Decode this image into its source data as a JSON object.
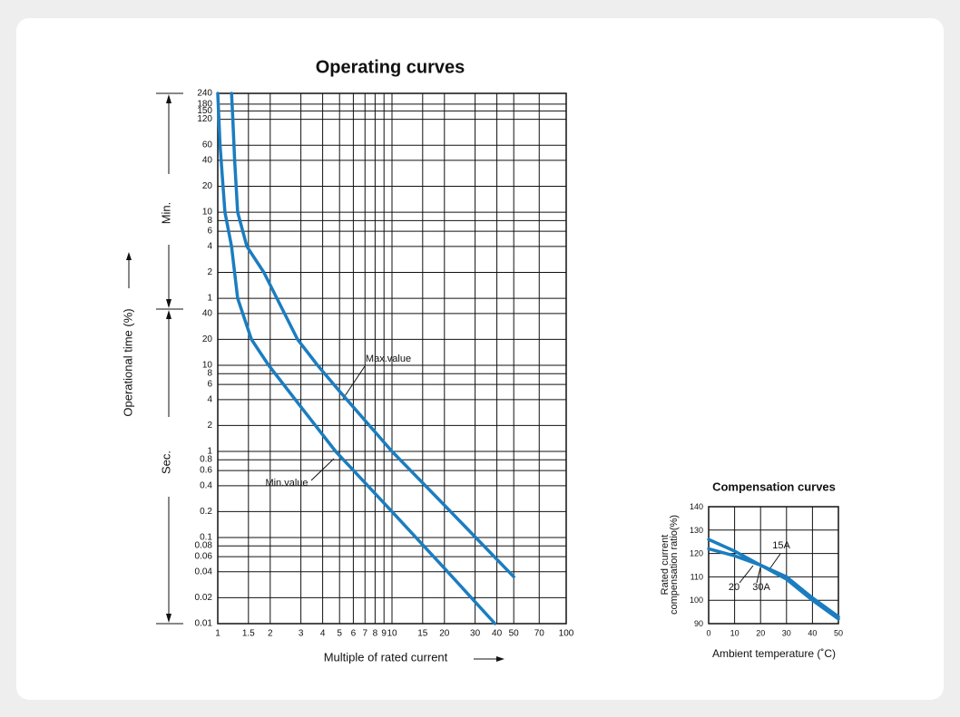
{
  "chart_data": [
    {
      "type": "line",
      "title": "Operating curves",
      "xlabel": "Multiple of rated current",
      "ylabel": "Operational time (%)",
      "xlog": true,
      "ylog": true,
      "grid": true,
      "xlim": [
        1,
        100
      ],
      "ylim": [
        0.01,
        14400
      ],
      "xticks": [
        1,
        1.5,
        2,
        3,
        4,
        5,
        6,
        7,
        8,
        9,
        10,
        15,
        20,
        30,
        40,
        50,
        70,
        100
      ],
      "yticks": [
        {
          "value": 14400,
          "label": "240"
        },
        {
          "value": 10800,
          "label": "180"
        },
        {
          "value": 9000,
          "label": "150"
        },
        {
          "value": 7200,
          "label": "120"
        },
        {
          "value": 3600,
          "label": "60"
        },
        {
          "value": 2400,
          "label": "40"
        },
        {
          "value": 1200,
          "label": "20"
        },
        {
          "value": 600,
          "label": "10"
        },
        {
          "value": 480,
          "label": "8"
        },
        {
          "value": 360,
          "label": "6"
        },
        {
          "value": 240,
          "label": "4"
        },
        {
          "value": 120,
          "label": "2"
        },
        {
          "value": 60,
          "label": "1"
        },
        40,
        20,
        10,
        8,
        6,
        4,
        2,
        1,
        0.8,
        0.6,
        0.4,
        0.2,
        0.1,
        0.08,
        0.06,
        0.04,
        0.02,
        0.01
      ],
      "series": [
        {
          "name": "Max.value",
          "color": "#1b7dc0",
          "x": [
            1.2,
            1.22,
            1.25,
            1.3,
            1.47,
            1.84,
            2.87,
            3.74,
            5,
            10,
            20,
            50
          ],
          "values": [
            14400,
            7200,
            2400,
            600,
            240,
            120,
            20,
            10,
            5,
            1,
            0.237,
            0.035
          ]
        },
        {
          "name": "Min.value",
          "color": "#1b7dc0",
          "x": [
            1.0,
            1.03,
            1.1,
            1.2,
            1.3,
            1.56,
            1.96,
            3,
            4.75,
            10,
            20,
            39
          ],
          "values": [
            14400,
            3600,
            600,
            240,
            60,
            20,
            10,
            3.3,
            1,
            0.2,
            0.044,
            0.01
          ]
        }
      ],
      "annotations": [
        "Min.",
        "Sec."
      ]
    },
    {
      "type": "line",
      "title": "Compensation curves",
      "xlabel": "Ambient temperature (˚C)",
      "ylabel": [
        "Rated current",
        "compensation ratio(%)"
      ],
      "grid": true,
      "xlim": [
        0,
        50
      ],
      "ylim": [
        90,
        140
      ],
      "xticks": [
        0,
        10,
        20,
        30,
        40,
        50
      ],
      "yticks": [
        90,
        100,
        110,
        120,
        130,
        140
      ],
      "series": [
        {
          "name": "15A",
          "color": "#1b7dc0",
          "x": [
            0,
            10,
            20,
            30,
            40,
            50
          ],
          "values": [
            122,
            119,
            115,
            110,
            101,
            93
          ]
        },
        {
          "name": "30A",
          "color": "#1b7dc0",
          "x": [
            0,
            10,
            20,
            30,
            40,
            50
          ],
          "values": [
            126,
            121,
            115,
            109,
            100,
            92
          ]
        }
      ],
      "annotations": [
        "20"
      ]
    }
  ]
}
